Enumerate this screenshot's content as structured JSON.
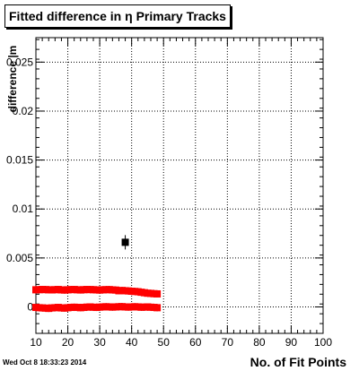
{
  "chart_data": {
    "type": "scatter",
    "title": "Fitted difference in  η Primary Tracks",
    "xlabel": "No. of Fit Points",
    "ylabel": "difference |m",
    "xlim": [
      10,
      100
    ],
    "ylim": [
      -0.0027,
      0.0275
    ],
    "grid": true,
    "x_ticks": [
      10,
      20,
      30,
      40,
      50,
      60,
      70,
      80,
      90,
      100
    ],
    "x_tick_labels": [
      "10",
      "20",
      "30",
      "40",
      "50",
      "60",
      "70",
      "80",
      "90",
      "100"
    ],
    "y_ticks": [
      0,
      0.005,
      0.01,
      0.015,
      0.02,
      0.025
    ],
    "y_tick_labels": [
      "0",
      "0.005",
      "0.01",
      "0.015",
      "0.02",
      "0.025"
    ],
    "series": [
      {
        "color": "#ff0000",
        "marker": "square",
        "x": [
          10,
          11,
          12,
          13,
          14,
          15,
          16,
          17,
          18,
          19,
          20,
          21,
          22,
          23,
          24,
          25,
          26,
          27,
          28,
          29,
          30,
          31,
          32,
          33,
          34,
          35,
          36,
          37,
          38,
          39,
          40,
          41,
          42,
          43,
          44,
          45,
          46,
          47,
          48
        ],
        "y": [
          0.00175,
          0.00176,
          0.00178,
          0.00177,
          0.00175,
          0.00174,
          0.00176,
          0.00178,
          0.00174,
          0.00172,
          0.00175,
          0.00177,
          0.00178,
          0.00175,
          0.00173,
          0.00176,
          0.00178,
          0.00177,
          0.00176,
          0.00174,
          0.00172,
          0.00175,
          0.00176,
          0.00177,
          0.00174,
          0.00172,
          0.00165,
          0.00168,
          0.00165,
          0.00163,
          0.0016,
          0.00158,
          0.00155,
          0.0015,
          0.00145,
          0.0014,
          0.00138,
          0.00135,
          0.00133
        ]
      },
      {
        "color": "#000000",
        "marker": "square",
        "x": [
          38
        ],
        "y": [
          0.0066
        ]
      },
      {
        "color": "#ff0000",
        "marker": "square",
        "x": [
          10,
          11,
          12,
          13,
          14,
          15,
          16,
          17,
          18,
          19,
          20,
          21,
          22,
          23,
          24,
          25,
          26,
          27,
          28,
          29,
          30,
          31,
          32,
          33,
          34,
          35,
          36,
          37,
          38,
          39,
          40,
          41,
          42,
          43,
          44,
          45,
          46,
          47,
          48
        ],
        "y": [
          -5e-05,
          -8e-05,
          -0.0001,
          -0.00012,
          -0.00015,
          -0.0001,
          -8e-05,
          -5e-05,
          -0.0001,
          -0.00012,
          -8e-05,
          -5e-05,
          -3e-05,
          -5e-05,
          -8e-05,
          -5e-05,
          -2e-05,
          0.0,
          -3e-05,
          -5e-05,
          -2e-05,
          0.0,
          2e-05,
          0.0,
          -2e-05,
          0.0,
          2e-05,
          3e-05,
          0.0,
          -2e-05,
          0.0,
          2e-05,
          0.0,
          -3e-05,
          -2e-05,
          0.0,
          -3e-05,
          -5e-05,
          -8e-05
        ]
      }
    ]
  },
  "footer": {
    "datestamp": "Wed Oct  8 18:33:23 2014"
  }
}
